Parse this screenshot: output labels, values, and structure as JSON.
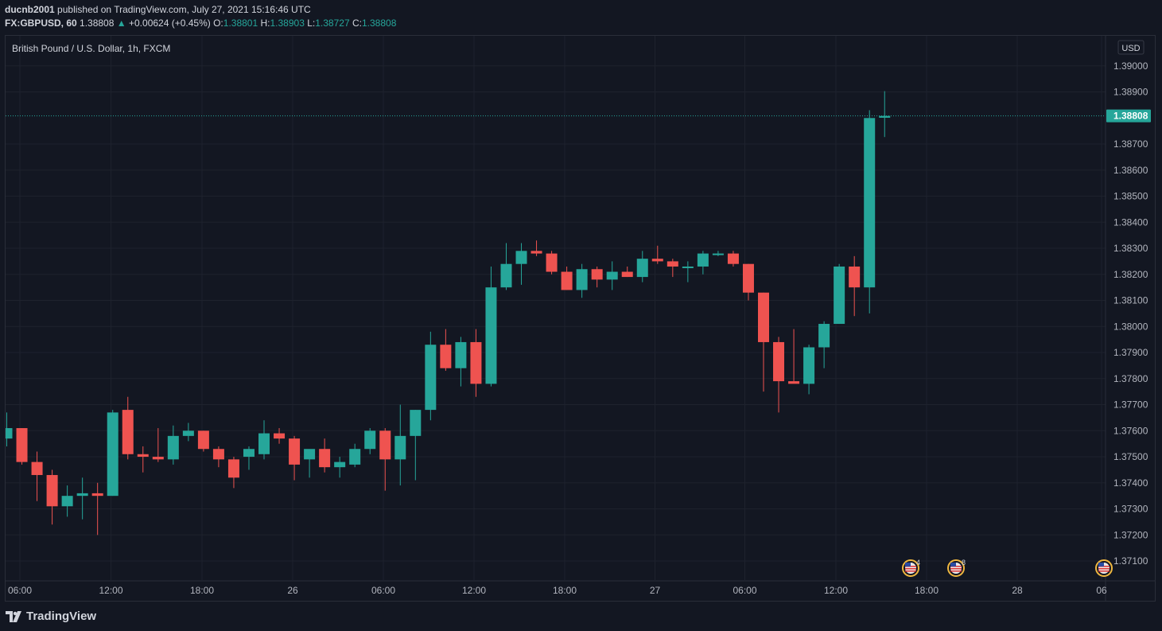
{
  "header": {
    "author": "ducnb2001",
    "published_text": "published on TradingView.com, July 27, 2021 15:16:46 UTC",
    "symbol": "FX:GBPUSD, 60",
    "last": "1.38808",
    "change_arrow": "▲",
    "change": "+0.00624 (+0.45%)",
    "o_label": "O:",
    "o_value": "1.38801",
    "h_label": "H:",
    "h_value": "1.38903",
    "l_label": "L:",
    "l_value": "1.38727",
    "c_label": "C:",
    "c_value": "1.38808"
  },
  "legend_title": "British Pound / U.S. Dollar, 1h, FXCM",
  "currency_label": "USD",
  "brand": "TradingView",
  "colors": {
    "background": "#131722",
    "up": "#26a69a",
    "down": "#ef5350",
    "grid": "#1e222d",
    "axis_text": "#b2b5be",
    "last_price_bg": "#26a69a"
  },
  "events": [
    {
      "icon": "us-flag-icon",
      "count": "4"
    },
    {
      "icon": "us-flag-icon",
      "count": "8"
    },
    {
      "icon": "us-flag-icon",
      "count": ""
    }
  ],
  "chart_data": {
    "type": "candlestick",
    "title": "British Pound / U.S. Dollar, 1h, FXCM",
    "x_tick_labels": [
      "06:00",
      "12:00",
      "18:00",
      "26",
      "06:00",
      "12:00",
      "18:00",
      "27",
      "06:00",
      "12:00",
      "18:00",
      "28",
      "06"
    ],
    "y_tick_labels": [
      "1.37100",
      "1.37200",
      "1.37300",
      "1.37400",
      "1.37500",
      "1.37600",
      "1.37700",
      "1.37800",
      "1.37900",
      "1.38000",
      "1.38100",
      "1.38200",
      "1.38300",
      "1.38400",
      "1.38500",
      "1.38600",
      "1.38700",
      "1.38900",
      "1.39000"
    ],
    "ylim": [
      1.3708,
      1.3915
    ],
    "last_price": "1.38808",
    "grid": true,
    "up_color": "#26a69a",
    "down_color": "#ef5350",
    "candles": [
      {
        "o": 1.3757,
        "h": 1.3767,
        "l": 1.3754,
        "c": 1.3761
      },
      {
        "o": 1.3761,
        "h": 1.3761,
        "l": 1.3747,
        "c": 1.3748
      },
      {
        "o": 1.3748,
        "h": 1.3752,
        "l": 1.3733,
        "c": 1.3743
      },
      {
        "o": 1.3743,
        "h": 1.3745,
        "l": 1.3724,
        "c": 1.3731
      },
      {
        "o": 1.3731,
        "h": 1.3739,
        "l": 1.3727,
        "c": 1.3735
      },
      {
        "o": 1.3735,
        "h": 1.3742,
        "l": 1.3726,
        "c": 1.3736
      },
      {
        "o": 1.3736,
        "h": 1.374,
        "l": 1.372,
        "c": 1.3735
      },
      {
        "o": 1.3735,
        "h": 1.3768,
        "l": 1.3735,
        "c": 1.3767
      },
      {
        "o": 1.3768,
        "h": 1.3773,
        "l": 1.3749,
        "c": 1.3751
      },
      {
        "o": 1.3751,
        "h": 1.3754,
        "l": 1.3744,
        "c": 1.375
      },
      {
        "o": 1.375,
        "h": 1.3761,
        "l": 1.3748,
        "c": 1.3749
      },
      {
        "o": 1.3749,
        "h": 1.3762,
        "l": 1.3747,
        "c": 1.3758
      },
      {
        "o": 1.3758,
        "h": 1.3763,
        "l": 1.3756,
        "c": 1.376
      },
      {
        "o": 1.376,
        "h": 1.376,
        "l": 1.3752,
        "c": 1.3753
      },
      {
        "o": 1.3753,
        "h": 1.3754,
        "l": 1.3746,
        "c": 1.3749
      },
      {
        "o": 1.3749,
        "h": 1.375,
        "l": 1.3738,
        "c": 1.3742
      },
      {
        "o": 1.375,
        "h": 1.3754,
        "l": 1.3745,
        "c": 1.3753
      },
      {
        "o": 1.3751,
        "h": 1.3764,
        "l": 1.3749,
        "c": 1.3759
      },
      {
        "o": 1.3759,
        "h": 1.3761,
        "l": 1.3755,
        "c": 1.3757
      },
      {
        "o": 1.3757,
        "h": 1.3758,
        "l": 1.3741,
        "c": 1.3747
      },
      {
        "o": 1.3749,
        "h": 1.3752,
        "l": 1.3742,
        "c": 1.3753
      },
      {
        "o": 1.3753,
        "h": 1.3757,
        "l": 1.3744,
        "c": 1.3746
      },
      {
        "o": 1.3746,
        "h": 1.375,
        "l": 1.3742,
        "c": 1.3748
      },
      {
        "o": 1.3747,
        "h": 1.3755,
        "l": 1.3746,
        "c": 1.3753
      },
      {
        "o": 1.3753,
        "h": 1.3761,
        "l": 1.3751,
        "c": 1.376
      },
      {
        "o": 1.376,
        "h": 1.3761,
        "l": 1.3737,
        "c": 1.3749
      },
      {
        "o": 1.3749,
        "h": 1.377,
        "l": 1.3739,
        "c": 1.3758
      },
      {
        "o": 1.3758,
        "h": 1.3768,
        "l": 1.3741,
        "c": 1.3768
      },
      {
        "o": 1.3768,
        "h": 1.3798,
        "l": 1.3764,
        "c": 1.3793
      },
      {
        "o": 1.3793,
        "h": 1.3799,
        "l": 1.3783,
        "c": 1.3784
      },
      {
        "o": 1.3784,
        "h": 1.3796,
        "l": 1.3777,
        "c": 1.3794
      },
      {
        "o": 1.3794,
        "h": 1.3799,
        "l": 1.3773,
        "c": 1.3778
      },
      {
        "o": 1.3778,
        "h": 1.3823,
        "l": 1.3777,
        "c": 1.3815
      },
      {
        "o": 1.3815,
        "h": 1.3832,
        "l": 1.3814,
        "c": 1.3824
      },
      {
        "o": 1.3824,
        "h": 1.3832,
        "l": 1.3816,
        "c": 1.3829
      },
      {
        "o": 1.3829,
        "h": 1.3833,
        "l": 1.3827,
        "c": 1.3828
      },
      {
        "o": 1.3828,
        "h": 1.3829,
        "l": 1.382,
        "c": 1.3821
      },
      {
        "o": 1.3821,
        "h": 1.3823,
        "l": 1.3814,
        "c": 1.3814
      },
      {
        "o": 1.3814,
        "h": 1.3824,
        "l": 1.3811,
        "c": 1.3822
      },
      {
        "o": 1.3822,
        "h": 1.3823,
        "l": 1.3815,
        "c": 1.3818
      },
      {
        "o": 1.3818,
        "h": 1.3825,
        "l": 1.3814,
        "c": 1.3821
      },
      {
        "o": 1.3821,
        "h": 1.3823,
        "l": 1.3819,
        "c": 1.3819
      },
      {
        "o": 1.3819,
        "h": 1.3829,
        "l": 1.3817,
        "c": 1.3826
      },
      {
        "o": 1.3826,
        "h": 1.3831,
        "l": 1.3824,
        "c": 1.3825
      },
      {
        "o": 1.3825,
        "h": 1.3826,
        "l": 1.3819,
        "c": 1.3823
      },
      {
        "o": 1.3823,
        "h": 1.3825,
        "l": 1.3817,
        "c": 1.3823
      },
      {
        "o": 1.3823,
        "h": 1.3829,
        "l": 1.382,
        "c": 1.3828
      },
      {
        "o": 1.3828,
        "h": 1.3829,
        "l": 1.3827,
        "c": 1.3828
      },
      {
        "o": 1.3828,
        "h": 1.3829,
        "l": 1.3823,
        "c": 1.3824
      },
      {
        "o": 1.3824,
        "h": 1.3824,
        "l": 1.381,
        "c": 1.3813
      },
      {
        "o": 1.3813,
        "h": 1.3813,
        "l": 1.3775,
        "c": 1.3794
      },
      {
        "o": 1.3794,
        "h": 1.3796,
        "l": 1.3767,
        "c": 1.3779
      },
      {
        "o": 1.3779,
        "h": 1.3799,
        "l": 1.3779,
        "c": 1.3778
      },
      {
        "o": 1.3778,
        "h": 1.3793,
        "l": 1.3774,
        "c": 1.3792
      },
      {
        "o": 1.3792,
        "h": 1.3802,
        "l": 1.3784,
        "c": 1.3801
      },
      {
        "o": 1.3801,
        "h": 1.3824,
        "l": 1.3801,
        "c": 1.3823
      },
      {
        "o": 1.3823,
        "h": 1.3827,
        "l": 1.3804,
        "c": 1.3815
      },
      {
        "o": 1.3815,
        "h": 1.3883,
        "l": 1.3805,
        "c": 1.388
      },
      {
        "o": 1.38801,
        "h": 1.38903,
        "l": 1.38727,
        "c": 1.38808
      }
    ]
  }
}
